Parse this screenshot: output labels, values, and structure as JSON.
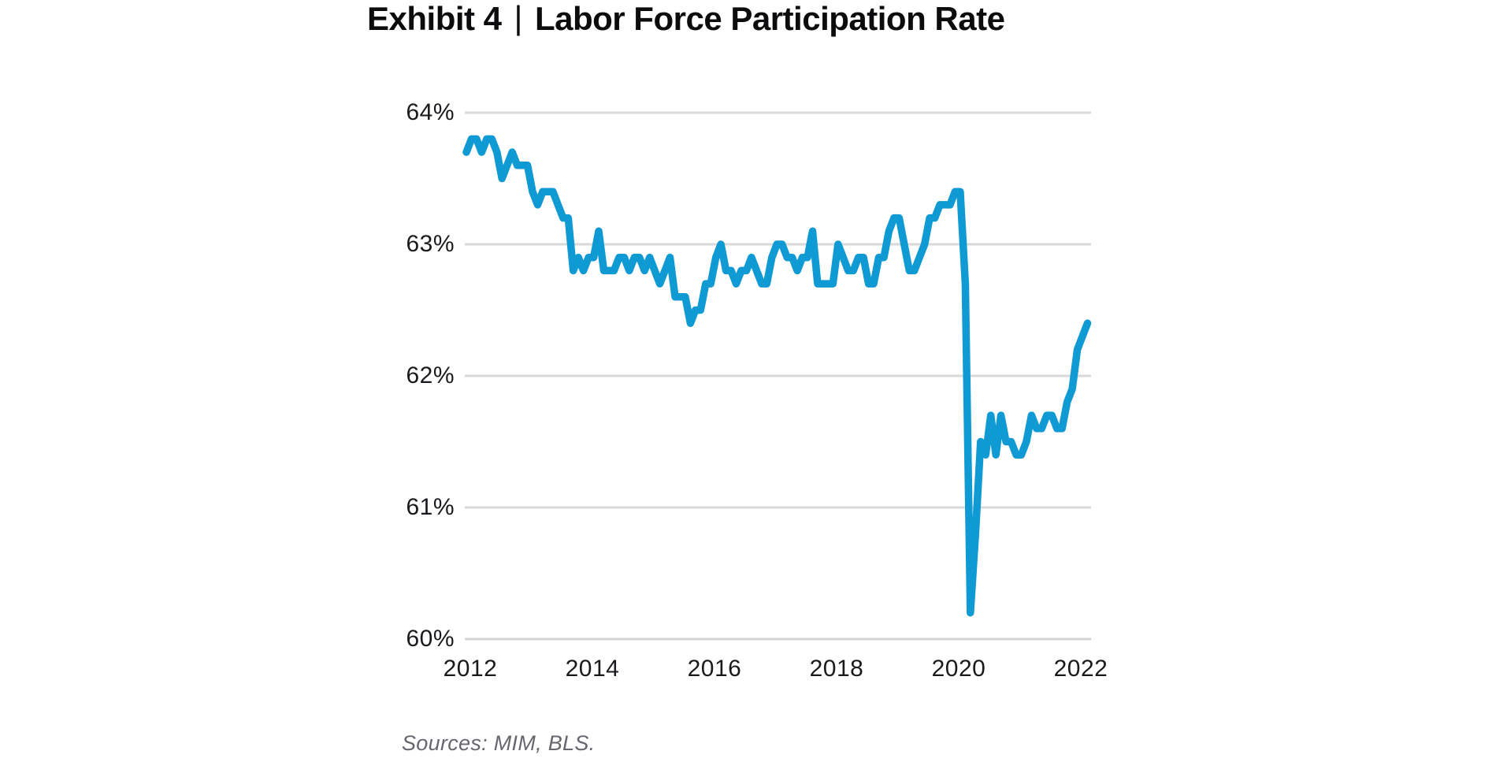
{
  "header": {
    "exhibit": "Exhibit 4",
    "separator": "|",
    "title": "Labor Force Participation Rate"
  },
  "footer": {
    "sources": "Sources: MIM, BLS."
  },
  "colors": {
    "line": "#109ad3",
    "gridline": "#d9d9d9",
    "axis_line": "#d4d4d4",
    "tick_text": "#1a1a1e",
    "title_text": "#0c0c0e",
    "sources_text": "#66666e",
    "background": "#ffffff"
  },
  "chart_data": {
    "type": "line",
    "title": "Exhibit 4 | Labor Force Participation Rate",
    "xlabel": "",
    "ylabel": "",
    "ylim": [
      60,
      64
    ],
    "y_tick_labels": [
      "64%",
      "63%",
      "62%",
      "61%",
      "60%"
    ],
    "y_tick_values": [
      64,
      63,
      62,
      61,
      60
    ],
    "x_tick_labels": [
      "2012",
      "2014",
      "2016",
      "2018",
      "2020",
      "2022"
    ],
    "x_start": "2012-01",
    "x_end": "2022-03",
    "x_interval": "month",
    "grid": "horizontal",
    "legend": "none",
    "series": [
      {
        "name": "Labor Force Participation Rate",
        "unit": "%",
        "values": [
          63.7,
          63.8,
          63.8,
          63.7,
          63.8,
          63.8,
          63.7,
          63.5,
          63.6,
          63.7,
          63.6,
          63.6,
          63.6,
          63.4,
          63.3,
          63.4,
          63.4,
          63.4,
          63.3,
          63.2,
          63.2,
          62.8,
          62.9,
          62.8,
          62.9,
          62.9,
          63.1,
          62.8,
          62.8,
          62.8,
          62.9,
          62.9,
          62.8,
          62.9,
          62.9,
          62.8,
          62.9,
          62.8,
          62.7,
          62.8,
          62.9,
          62.6,
          62.6,
          62.6,
          62.4,
          62.5,
          62.5,
          62.7,
          62.7,
          62.9,
          63.0,
          62.8,
          62.8,
          62.7,
          62.8,
          62.8,
          62.9,
          62.8,
          62.7,
          62.7,
          62.9,
          63.0,
          63.0,
          62.9,
          62.9,
          62.8,
          62.9,
          62.9,
          63.1,
          62.7,
          62.7,
          62.7,
          62.7,
          63.0,
          62.9,
          62.8,
          62.8,
          62.9,
          62.9,
          62.7,
          62.7,
          62.9,
          62.9,
          63.1,
          63.2,
          63.2,
          63.0,
          62.8,
          62.8,
          62.9,
          63.0,
          63.2,
          63.2,
          63.3,
          63.3,
          63.3,
          63.4,
          63.4,
          62.7,
          60.2,
          60.8,
          61.5,
          61.4,
          61.7,
          61.4,
          61.7,
          61.5,
          61.5,
          61.4,
          61.4,
          61.5,
          61.7,
          61.6,
          61.6,
          61.7,
          61.7,
          61.6,
          61.6,
          61.8,
          61.9,
          62.2,
          62.3,
          62.4
        ]
      }
    ]
  }
}
